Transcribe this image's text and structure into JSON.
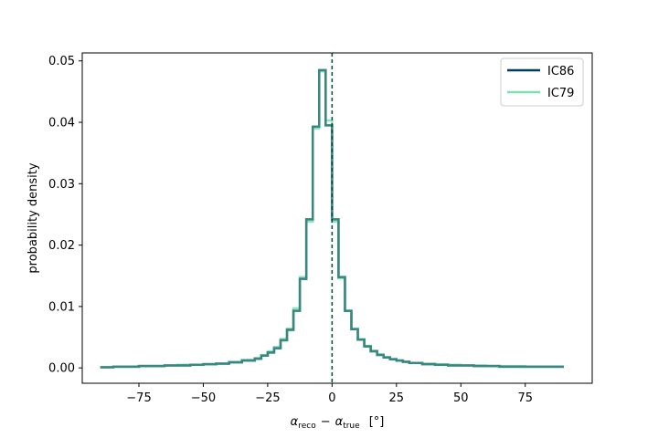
{
  "chart_data": {
    "type": "line",
    "step": true,
    "title": "",
    "xlabel_parts": {
      "reco_sym": "α",
      "reco_sub": "reco",
      "minus": "−",
      "true_sym": "α",
      "true_sub": "true",
      "unit": "[°]"
    },
    "ylabel": "probability density",
    "xlim": [
      -97,
      101
    ],
    "ylim": [
      -0.0025,
      0.0513
    ],
    "xticks": [
      -75,
      -50,
      -25,
      0,
      25,
      50,
      75
    ],
    "xtick_labels": [
      "−75",
      "−50",
      "−25",
      "0",
      "25",
      "50",
      "75"
    ],
    "yticks": [
      0.0,
      0.01,
      0.02,
      0.03,
      0.04,
      0.05
    ],
    "ytick_labels": [
      "0.00",
      "0.01",
      "0.02",
      "0.03",
      "0.04",
      "0.05"
    ],
    "vline_x": 0,
    "vline_color": "#00493e",
    "legend_position": "top-right",
    "grid": false,
    "bin_edges": [
      -90,
      -85,
      -80,
      -75,
      -70,
      -65,
      -60,
      -55,
      -50,
      -45,
      -40,
      -35,
      -30,
      -27.5,
      -25,
      -22.5,
      -20,
      -17.5,
      -15,
      -12.5,
      -10,
      -7.5,
      -5,
      -2.5,
      0,
      2.5,
      5,
      7.5,
      10,
      12.5,
      15,
      17.5,
      20,
      22.5,
      25,
      27.5,
      30,
      35,
      40,
      45,
      50,
      55,
      60,
      65,
      70,
      75,
      80,
      85,
      90
    ],
    "series": [
      {
        "name": "IC86",
        "color": "#003f5c",
        "linewidth": 2.5,
        "values": [
          0.0001,
          0.0002,
          0.0002,
          0.0003,
          0.0003,
          0.0004,
          0.0004,
          0.0005,
          0.0006,
          0.0007,
          0.0009,
          0.0012,
          0.0015,
          0.002,
          0.0025,
          0.0032,
          0.0045,
          0.0062,
          0.0093,
          0.0145,
          0.0242,
          0.0393,
          0.0485,
          0.0395,
          0.0242,
          0.0148,
          0.0093,
          0.0063,
          0.0046,
          0.0035,
          0.0027,
          0.0021,
          0.0017,
          0.0014,
          0.0012,
          0.001,
          0.0008,
          0.0006,
          0.0005,
          0.0004,
          0.0004,
          0.0003,
          0.0003,
          0.0002,
          0.0002,
          0.0002,
          0.0002,
          0.0002
        ]
      },
      {
        "name": "IC79",
        "color": "#7ee0b0",
        "linewidth": 2.5,
        "values": [
          0.0001,
          0.0002,
          0.0002,
          0.0003,
          0.0003,
          0.0004,
          0.0005,
          0.0005,
          0.0006,
          0.0007,
          0.001,
          0.0013,
          0.0016,
          0.0021,
          0.0027,
          0.0034,
          0.0047,
          0.0064,
          0.0097,
          0.0148,
          0.0238,
          0.039,
          0.0483,
          0.0403,
          0.0238,
          0.0146,
          0.0093,
          0.0064,
          0.0047,
          0.0036,
          0.0028,
          0.0022,
          0.0018,
          0.0015,
          0.0012,
          0.001,
          0.0008,
          0.0007,
          0.0006,
          0.0005,
          0.0004,
          0.0004,
          0.0003,
          0.0003,
          0.0003,
          0.0002,
          0.0002,
          0.0002
        ]
      }
    ]
  }
}
